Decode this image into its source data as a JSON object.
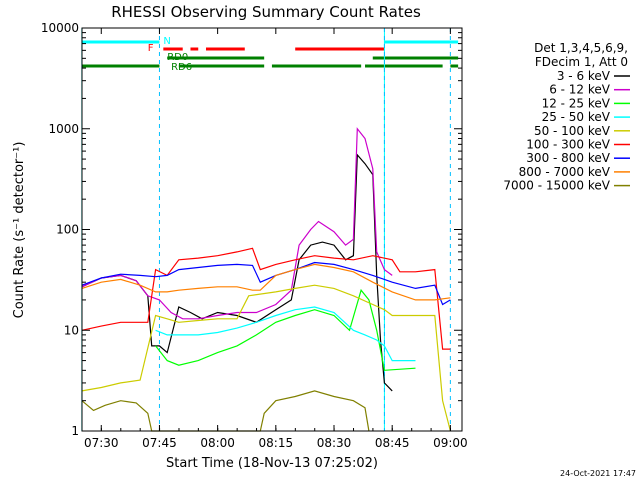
{
  "chart_data": {
    "type": "line",
    "title": "RHESSI Observing Summary Count Rates",
    "xlabel": "Start Time (18-Nov-13 07:25:02)",
    "ylabel": "Count Rate (s⁻¹ detector⁻¹)",
    "y_scale": "log",
    "ylim": [
      1,
      10000
    ],
    "xlim": [
      "07:25:02",
      "09:03:00"
    ],
    "x_ticks": [
      "07:30",
      "07:45",
      "08:00",
      "08:15",
      "08:30",
      "08:45",
      "09:00"
    ],
    "y_ticks": [
      "1",
      "10",
      "100",
      "1000",
      "10000"
    ],
    "legend_header": [
      "Det 1,3,4,5,6,9,",
      "FDecim 1, Att 0"
    ],
    "legend_position": "right",
    "timestamp": "24-Oct-2021 17:47",
    "flag_labels": {
      "N": "N",
      "F": "F",
      "RD0": "RD0",
      "RD6": "RD6"
    },
    "flags": {
      "night": {
        "color": "#00ffff",
        "intervals": [
          [
            "07:25",
            "07:45"
          ],
          [
            "08:43",
            "09:02"
          ]
        ]
      },
      "flare": {
        "color": "#ff0000",
        "intervals": [
          [
            "07:46",
            "07:51"
          ],
          [
            "07:53",
            "07:55"
          ],
          [
            "07:57",
            "08:07"
          ],
          [
            "08:20",
            "08:43"
          ]
        ]
      },
      "rd0": {
        "color": "#008000",
        "intervals": [
          [
            "07:47",
            "08:12"
          ],
          [
            "08:40",
            "09:02"
          ]
        ]
      },
      "rd6": {
        "color": "#008000",
        "intervals": [
          [
            "07:25",
            "07:45"
          ],
          [
            "07:50",
            "08:12"
          ],
          [
            "08:14",
            "08:37"
          ],
          [
            "08:38",
            "08:58"
          ],
          [
            "09:00",
            "09:02"
          ]
        ]
      }
    },
    "night_boundaries": [
      "07:45",
      "08:43"
    ],
    "saa_boundaries": [
      "07:25",
      "08:43"
    ],
    "series": [
      {
        "name": "3 - 6 keV",
        "color": "#000000",
        "points": [
          [
            "07:25",
            27
          ],
          [
            "07:30",
            33
          ],
          [
            "07:35",
            35
          ],
          [
            "07:39",
            31
          ],
          [
            "07:42",
            22
          ],
          [
            "07:43",
            7
          ],
          [
            "07:45",
            7
          ],
          [
            "07:47",
            6
          ],
          [
            "07:50",
            17
          ],
          [
            "07:53",
            15
          ],
          [
            "07:56",
            13
          ],
          [
            "08:00",
            15
          ],
          [
            "08:05",
            14
          ],
          [
            "08:10",
            12
          ],
          [
            "08:15",
            16
          ],
          [
            "08:19",
            20
          ],
          [
            "08:21",
            50
          ],
          [
            "08:24",
            70
          ],
          [
            "08:27",
            75
          ],
          [
            "08:30",
            70
          ],
          [
            "08:33",
            50
          ],
          [
            "08:35",
            55
          ],
          [
            "08:36",
            550
          ],
          [
            "08:38",
            450
          ],
          [
            "08:40",
            350
          ],
          [
            "08:41",
            35
          ],
          [
            "08:42",
            8
          ],
          [
            "08:43",
            3
          ],
          [
            "08:45",
            2.5
          ]
        ]
      },
      {
        "name": "6 - 12 keV",
        "color": "#cc00cc",
        "points": [
          [
            "07:25",
            27
          ],
          [
            "07:30",
            33
          ],
          [
            "07:35",
            35
          ],
          [
            "07:39",
            31
          ],
          [
            "07:42",
            22
          ],
          [
            "07:45",
            20
          ],
          [
            "07:48",
            15
          ],
          [
            "07:51",
            13
          ],
          [
            "07:55",
            13
          ],
          [
            "08:00",
            14
          ],
          [
            "08:05",
            15
          ],
          [
            "08:10",
            15
          ],
          [
            "08:15",
            18
          ],
          [
            "08:19",
            25
          ],
          [
            "08:21",
            70
          ],
          [
            "08:24",
            100
          ],
          [
            "08:26",
            120
          ],
          [
            "08:30",
            95
          ],
          [
            "08:33",
            70
          ],
          [
            "08:35",
            80
          ],
          [
            "08:36",
            1000
          ],
          [
            "08:38",
            800
          ],
          [
            "08:40",
            400
          ],
          [
            "08:41",
            60
          ],
          [
            "08:43",
            40
          ],
          [
            "08:45",
            35
          ]
        ]
      },
      {
        "name": "12 - 25 keV",
        "color": "#00ff00",
        "points": [
          [
            "07:44",
            7
          ],
          [
            "07:47",
            5
          ],
          [
            "07:50",
            4.5
          ],
          [
            "07:55",
            5
          ],
          [
            "08:00",
            6
          ],
          [
            "08:05",
            7
          ],
          [
            "08:10",
            9
          ],
          [
            "08:15",
            12
          ],
          [
            "08:20",
            14
          ],
          [
            "08:25",
            16
          ],
          [
            "08:30",
            14
          ],
          [
            "08:34",
            10
          ],
          [
            "08:37",
            25
          ],
          [
            "08:39",
            20
          ],
          [
            "08:41",
            10
          ],
          [
            "08:43",
            4
          ],
          [
            "08:51",
            4.2
          ]
        ]
      },
      {
        "name": "25 - 50 keV",
        "color": "#00ffff",
        "points": [
          [
            "07:44",
            10
          ],
          [
            "07:47",
            9
          ],
          [
            "07:50",
            9
          ],
          [
            "07:55",
            9
          ],
          [
            "08:00",
            9.5
          ],
          [
            "08:05",
            10.5
          ],
          [
            "08:10",
            12
          ],
          [
            "08:15",
            14
          ],
          [
            "08:20",
            16
          ],
          [
            "08:25",
            17
          ],
          [
            "08:30",
            15
          ],
          [
            "08:35",
            10
          ],
          [
            "08:38",
            9
          ],
          [
            "08:41",
            8
          ],
          [
            "08:43",
            7
          ],
          [
            "08:45",
            5
          ],
          [
            "08:51",
            5
          ]
        ]
      },
      {
        "name": "50 - 100 keV",
        "color": "#cccc00",
        "points": [
          [
            "07:25",
            2.5
          ],
          [
            "07:30",
            2.7
          ],
          [
            "07:35",
            3
          ],
          [
            "07:40",
            3.2
          ],
          [
            "07:44",
            14
          ],
          [
            "07:47",
            13
          ],
          [
            "07:50",
            12
          ],
          [
            "07:55",
            12.5
          ],
          [
            "08:00",
            13
          ],
          [
            "08:05",
            13
          ],
          [
            "08:08",
            22
          ],
          [
            "08:15",
            24
          ],
          [
            "08:20",
            26
          ],
          [
            "08:25",
            28
          ],
          [
            "08:30",
            26
          ],
          [
            "08:35",
            22
          ],
          [
            "08:40",
            18
          ],
          [
            "08:43",
            16
          ],
          [
            "08:45",
            14
          ],
          [
            "08:51",
            14
          ],
          [
            "08:56",
            14
          ],
          [
            "08:58",
            2
          ],
          [
            "09:00",
            1
          ]
        ]
      },
      {
        "name": "100 - 300 keV",
        "color": "#ff0000",
        "points": [
          [
            "07:25",
            10
          ],
          [
            "07:30",
            11
          ],
          [
            "07:35",
            12
          ],
          [
            "07:40",
            12
          ],
          [
            "07:42",
            12
          ],
          [
            "07:44",
            40
          ],
          [
            "07:47",
            35
          ],
          [
            "07:50",
            50
          ],
          [
            "07:55",
            52
          ],
          [
            "08:00",
            55
          ],
          [
            "08:05",
            60
          ],
          [
            "08:09",
            65
          ],
          [
            "08:11",
            40
          ],
          [
            "08:15",
            45
          ],
          [
            "08:20",
            50
          ],
          [
            "08:25",
            55
          ],
          [
            "08:30",
            52
          ],
          [
            "08:35",
            50
          ],
          [
            "08:40",
            55
          ],
          [
            "08:45",
            50
          ],
          [
            "08:47",
            38
          ],
          [
            "08:51",
            38
          ],
          [
            "08:56",
            40
          ],
          [
            "08:58",
            6.5
          ],
          [
            "09:00",
            6.5
          ]
        ]
      },
      {
        "name": "300 - 800 keV",
        "color": "#0000ff",
        "points": [
          [
            "07:25",
            28
          ],
          [
            "07:30",
            33
          ],
          [
            "07:35",
            36
          ],
          [
            "07:40",
            35
          ],
          [
            "07:44",
            34
          ],
          [
            "07:47",
            35
          ],
          [
            "07:50",
            40
          ],
          [
            "07:55",
            42
          ],
          [
            "08:00",
            44
          ],
          [
            "08:05",
            45
          ],
          [
            "08:09",
            44
          ],
          [
            "08:11",
            30
          ],
          [
            "08:15",
            35
          ],
          [
            "08:20",
            40
          ],
          [
            "08:25",
            47
          ],
          [
            "08:30",
            45
          ],
          [
            "08:35",
            40
          ],
          [
            "08:40",
            35
          ],
          [
            "08:45",
            30
          ],
          [
            "08:51",
            26
          ],
          [
            "08:56",
            28
          ],
          [
            "08:58",
            18
          ],
          [
            "09:00",
            20
          ]
        ]
      },
      {
        "name": "800 - 7000 keV",
        "color": "#ff8000",
        "points": [
          [
            "07:25",
            26
          ],
          [
            "07:30",
            30
          ],
          [
            "07:35",
            32
          ],
          [
            "07:40",
            28
          ],
          [
            "07:44",
            24
          ],
          [
            "07:47",
            24
          ],
          [
            "07:50",
            25
          ],
          [
            "07:55",
            26
          ],
          [
            "08:00",
            27
          ],
          [
            "08:05",
            27
          ],
          [
            "08:09",
            25
          ],
          [
            "08:11",
            25
          ],
          [
            "08:15",
            35
          ],
          [
            "08:20",
            40
          ],
          [
            "08:25",
            45
          ],
          [
            "08:30",
            42
          ],
          [
            "08:35",
            38
          ],
          [
            "08:40",
            30
          ],
          [
            "08:45",
            24
          ],
          [
            "08:51",
            20
          ],
          [
            "08:56",
            20
          ],
          [
            "09:00",
            21
          ]
        ]
      },
      {
        "name": "7000 - 15000 keV",
        "color": "#808000",
        "points": [
          [
            "07:25",
            2
          ],
          [
            "07:28",
            1.6
          ],
          [
            "07:31",
            1.8
          ],
          [
            "07:35",
            2
          ],
          [
            "07:39",
            1.9
          ],
          [
            "07:42",
            1.5
          ],
          [
            "07:43",
            1
          ],
          [
            "08:11",
            1
          ],
          [
            "08:12",
            1.5
          ],
          [
            "08:15",
            2
          ],
          [
            "08:20",
            2.2
          ],
          [
            "08:25",
            2.5
          ],
          [
            "08:30",
            2.2
          ],
          [
            "08:35",
            2
          ],
          [
            "08:38",
            1.7
          ],
          [
            "08:39",
            1
          ]
        ]
      }
    ]
  }
}
